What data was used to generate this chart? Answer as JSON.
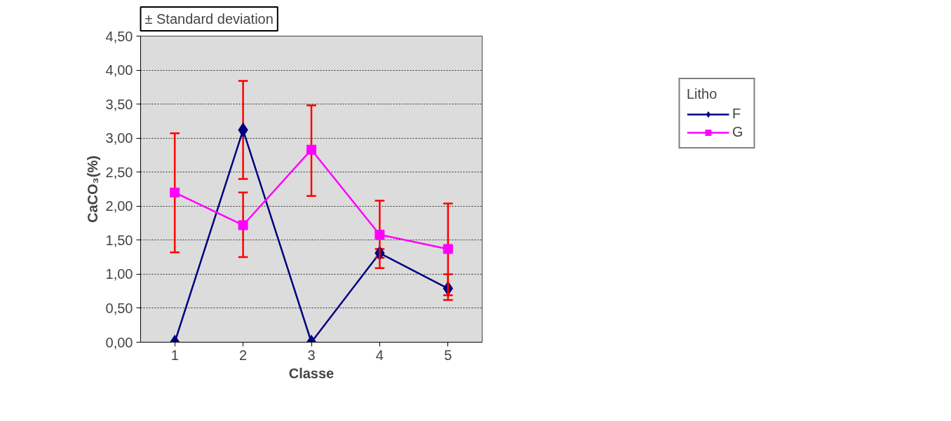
{
  "chart_data": {
    "type": "line",
    "xlabel": "Classe",
    "ylabel": "CaCO₃(%)",
    "legend_title": "Litho",
    "annotations": [
      "± Standard deviation"
    ],
    "categories": [
      "1",
      "2",
      "3",
      "4",
      "5"
    ],
    "series": [
      {
        "name": "F",
        "color": "#000080",
        "marker": "diamond",
        "values": [
          0,
          3.12,
          0,
          1.31,
          0.79
        ],
        "errors": [
          null,
          [
            2.4,
            3.84
          ],
          null,
          [
            1.24,
            1.37
          ],
          [
            0.62,
            1.0
          ]
        ]
      },
      {
        "name": "G",
        "color": "#ff00ff",
        "marker": "square",
        "values": [
          2.2,
          1.72,
          2.83,
          1.58,
          1.37
        ],
        "errors": [
          [
            1.32,
            3.07
          ],
          [
            1.25,
            2.2
          ],
          [
            2.15,
            3.48
          ],
          [
            1.09,
            2.08
          ],
          [
            0.69,
            2.04
          ]
        ]
      }
    ],
    "ylim": [
      0,
      4.5
    ],
    "yticks": [
      {
        "value": 0,
        "label": "0,00"
      },
      {
        "value": 0.5,
        "label": "0,50"
      },
      {
        "value": 1,
        "label": "1,00"
      },
      {
        "value": 1.5,
        "label": "1,50"
      },
      {
        "value": 2,
        "label": "2,00"
      },
      {
        "value": 2.5,
        "label": "2,50"
      },
      {
        "value": 3,
        "label": "3,00"
      },
      {
        "value": 3.5,
        "label": "3,50"
      },
      {
        "value": 4,
        "label": "4,00"
      },
      {
        "value": 4.5,
        "label": "4,50"
      }
    ],
    "grid": "y",
    "legend": "top right",
    "line_style": "solid"
  }
}
